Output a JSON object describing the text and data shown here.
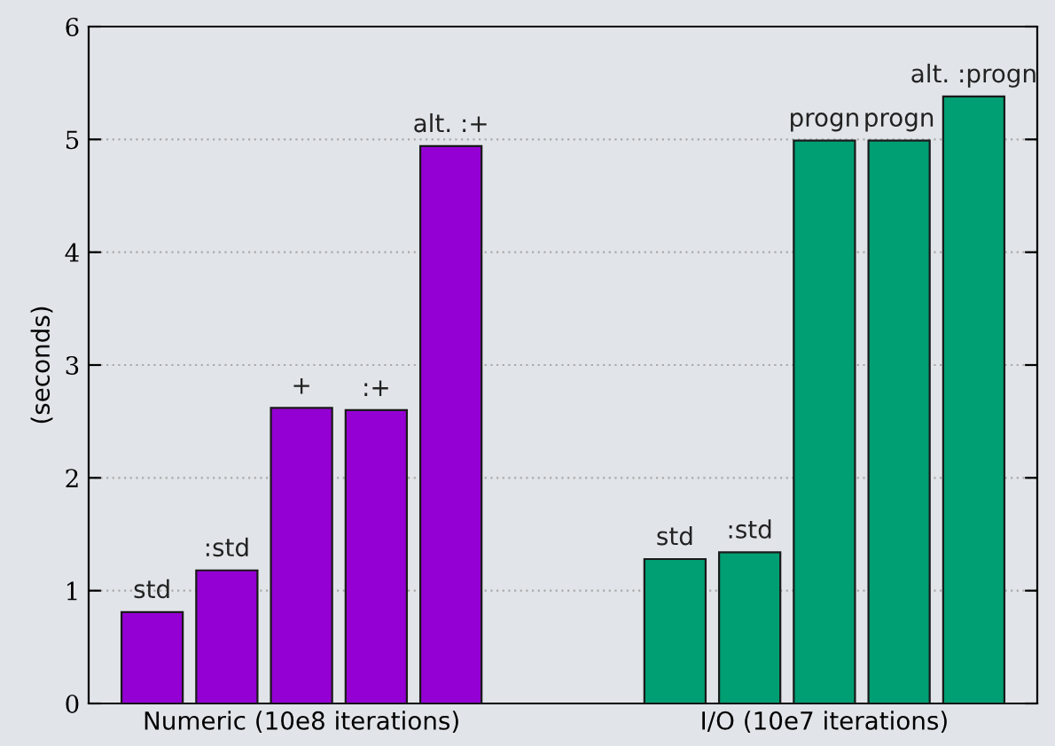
{
  "chart_data": {
    "type": "bar",
    "ylabel": "(seconds)",
    "categories": [
      "std",
      ":std",
      "+",
      ":+",
      "alt. :+",
      null,
      null,
      "std",
      ":std",
      "progn",
      "progn",
      "alt. :progn"
    ],
    "values": [
      0.81,
      1.18,
      2.62,
      2.6,
      4.94,
      null,
      null,
      1.28,
      1.34,
      4.99,
      4.99,
      5.38
    ],
    "colors": [
      "#9400d3",
      "#9400d3",
      "#9400d3",
      "#9400d3",
      "#9400d3",
      null,
      null,
      "#009e73",
      "#009e73",
      "#009e73",
      "#009e73",
      "#009e73"
    ],
    "annotations": [
      "Numeric (10e8 iterations)",
      "I/O (10e7 iterations)"
    ],
    "ylim": [
      0,
      6
    ],
    "yticks": [
      0,
      1,
      2,
      3,
      4,
      5,
      6
    ],
    "grid": "y"
  }
}
